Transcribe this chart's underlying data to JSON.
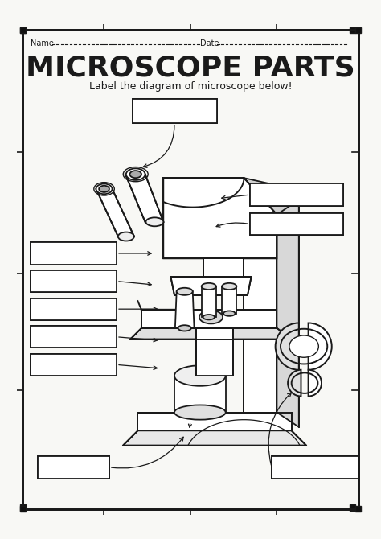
{
  "title": "MICROSCOPE PARTS",
  "subtitle": "Label the diagram of microscope below!",
  "bg_color": "#ffffff",
  "line_color": "#1a1a1a",
  "box_color": "#ffffff",
  "border_color": "#111111",
  "name_text": "Name",
  "date_text": "Date",
  "title_fontsize": 26,
  "subtitle_fontsize": 9,
  "page_bg": "#f8f8f5"
}
